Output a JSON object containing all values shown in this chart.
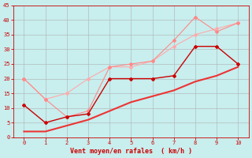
{
  "xlabel": "Vent moyen/en rafales  ( km/h )",
  "xlim": [
    -0.5,
    10.5
  ],
  "ylim": [
    0,
    45
  ],
  "yticks": [
    0,
    5,
    10,
    15,
    20,
    25,
    30,
    35,
    40,
    45
  ],
  "xticks": [
    0,
    1,
    2,
    3,
    4,
    5,
    6,
    7,
    8,
    9,
    10
  ],
  "bg_color": "#c8eeee",
  "grid_color": "#b0b0b0",
  "series": [
    {
      "x": [
        0,
        1,
        2,
        3,
        4,
        5,
        6,
        7,
        8,
        9,
        10
      ],
      "y": [
        11,
        5,
        7,
        8,
        20,
        20,
        20,
        21,
        31,
        31,
        25
      ],
      "color": "#cc0000",
      "lw": 1.0,
      "marker": "D",
      "ms": 2,
      "zorder": 5
    },
    {
      "x": [
        0,
        1,
        2,
        3,
        4,
        5,
        6,
        7,
        8,
        9,
        10
      ],
      "y": [
        2,
        2,
        4,
        6,
        9,
        12,
        14,
        16,
        19,
        21,
        24
      ],
      "color": "#ee3333",
      "lw": 1.5,
      "marker": null,
      "ms": 0,
      "zorder": 4
    },
    {
      "x": [
        0,
        1,
        2,
        3,
        4,
        5,
        6,
        7,
        8,
        9,
        10
      ],
      "y": [
        20,
        13,
        7,
        9,
        24,
        25,
        26,
        33,
        41,
        36,
        39
      ],
      "color": "#ff8888",
      "lw": 0.8,
      "marker": "D",
      "ms": 2,
      "zorder": 2
    },
    {
      "x": [
        0,
        1,
        2,
        3,
        4,
        5,
        6,
        7,
        8,
        9,
        10
      ],
      "y": [
        20,
        13,
        15,
        20,
        24,
        24,
        26,
        31,
        35,
        37,
        39
      ],
      "color": "#ffaaaa",
      "lw": 0.8,
      "marker": "D",
      "ms": 2,
      "zorder": 1
    }
  ]
}
